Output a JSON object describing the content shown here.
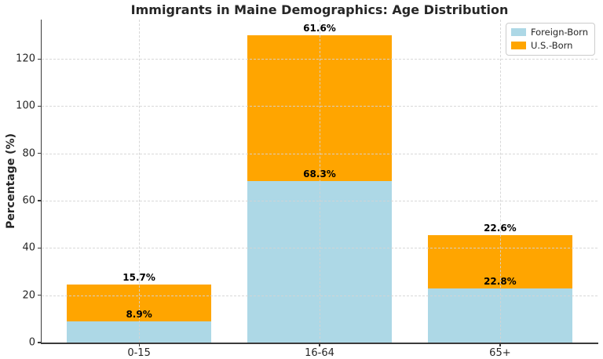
{
  "figure": {
    "background": "#ffffff"
  },
  "chart_data": {
    "type": "bar",
    "stacked": true,
    "title": "Immigrants in Maine Demographics: Age Distribution",
    "xlabel": "",
    "ylabel": "Percentage (%)",
    "categories": [
      "0-15",
      "16-64",
      "65+"
    ],
    "series": [
      {
        "name": "Foreign-Born",
        "color": "#ADD8E6",
        "values": [
          8.9,
          68.3,
          22.8
        ],
        "labels": [
          "8.9%",
          "68.3%",
          "22.8%"
        ]
      },
      {
        "name": "U.S.-Born",
        "color": "#FFA500",
        "values": [
          15.7,
          61.6,
          22.6
        ],
        "labels": [
          "15.7%",
          "61.6%",
          "22.6%"
        ]
      }
    ],
    "yticks": [
      0,
      20,
      40,
      60,
      80,
      100,
      120
    ],
    "ylim": [
      0,
      136.6
    ],
    "xlim": [
      -0.54,
      2.54
    ],
    "bar_width": 0.8,
    "grid": true,
    "grid_style": "dashed",
    "legend_position": "upper right",
    "axis_color": "#3b3b3b",
    "text_color": "#262626",
    "value_label_color": "#000000"
  }
}
